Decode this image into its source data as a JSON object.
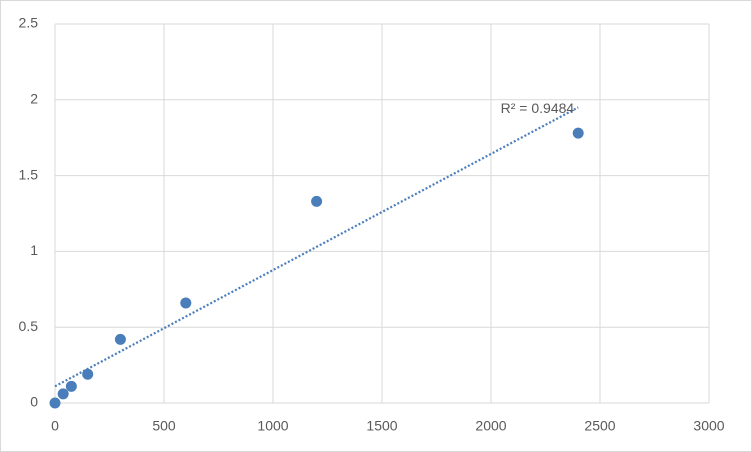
{
  "chart_data": {
    "type": "scatter",
    "series": [
      {
        "color": "#4a7ebb",
        "x": [
          0,
          37.5,
          75,
          150,
          300,
          600,
          1200,
          2400
        ],
        "values": [
          0,
          0.06,
          0.11,
          0.19,
          0.42,
          0.66,
          1.33,
          1.78
        ]
      }
    ],
    "trendline": {
      "x": [
        0,
        2400
      ],
      "y": [
        0.11,
        1.95
      ],
      "label": "R² = 0.9484",
      "color": "#4a7ebb"
    },
    "xlim": [
      0,
      3000
    ],
    "xticks": [
      0,
      500,
      1000,
      1500,
      2000,
      2500,
      3000
    ],
    "ylim": [
      0,
      2.5
    ],
    "yticks": [
      0,
      0.5,
      1,
      1.5,
      2,
      2.5
    ],
    "grid": true
  }
}
